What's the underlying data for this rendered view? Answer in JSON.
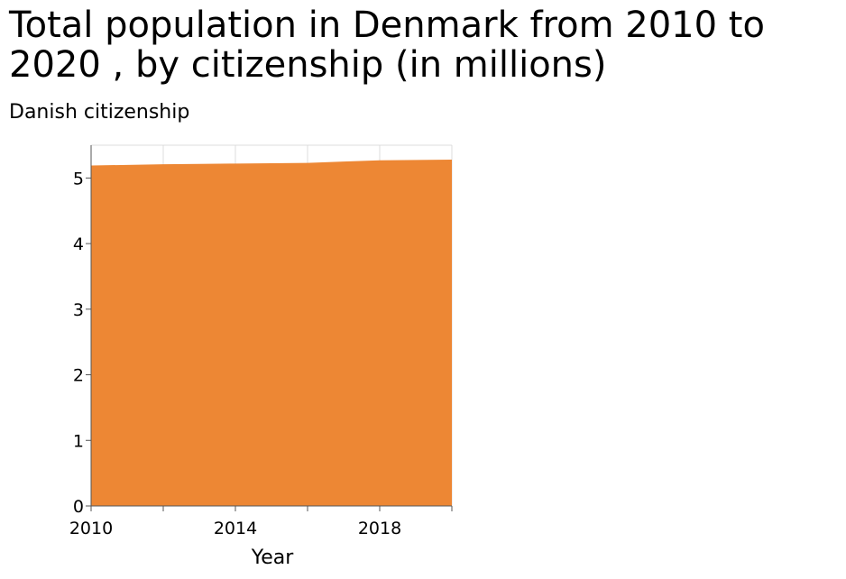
{
  "chart_data": {
    "type": "area",
    "title": "Total population in Denmark from 2010 to 2020 , by citizenship (in millions)",
    "ylabel": "Danish citizenship",
    "xlabel": "Year",
    "x": [
      2010,
      2011,
      2012,
      2013,
      2014,
      2015,
      2016,
      2017,
      2018,
      2019,
      2020
    ],
    "series": [
      {
        "values": [
          5.19,
          5.2,
          5.21,
          5.215,
          5.22,
          5.225,
          5.23,
          5.25,
          5.27,
          5.275,
          5.28
        ],
        "color": "#ed8734"
      }
    ],
    "xlim": [
      2010,
      2020
    ],
    "ylim": [
      0,
      5.5
    ],
    "x_ticks": [
      "2010",
      "2014",
      "2018"
    ],
    "y_ticks": [
      "0",
      "1",
      "2",
      "3",
      "4",
      "5"
    ],
    "grid": true
  }
}
